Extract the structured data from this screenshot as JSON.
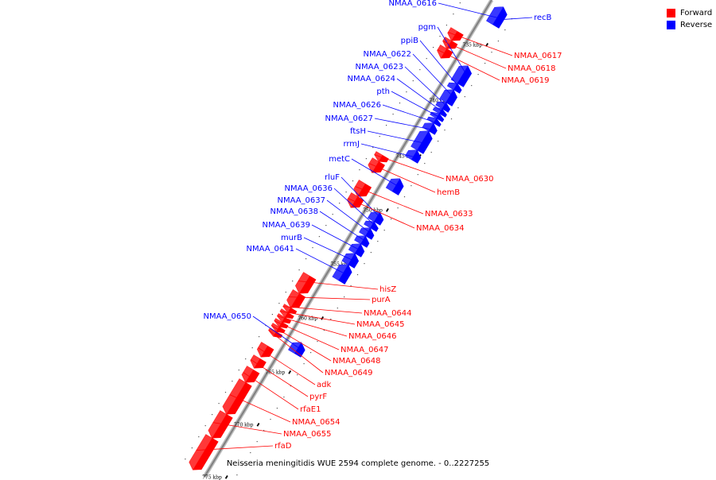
{
  "caption": "Neisseria meningitidis WUE 2594 complete genome. - 0..2227255",
  "legend": [
    {
      "label": "Forward",
      "color": "#ff0000"
    },
    {
      "label": "Reverse",
      "color": "#0000ff"
    }
  ],
  "colors": {
    "forward": "#ff0000",
    "reverse": "#0000ff",
    "backbone": "#808080"
  },
  "ticks": [
    {
      "label": "735 kbp",
      "kbp": 735
    },
    {
      "label": "740 kbp",
      "kbp": 740
    },
    {
      "label": "745 kbp",
      "kbp": 745
    },
    {
      "label": "750 kbp",
      "kbp": 750
    },
    {
      "label": "755 kbp",
      "kbp": 755
    },
    {
      "label": "760 kbp",
      "kbp": 760
    },
    {
      "label": "765 kbp",
      "kbp": 765
    },
    {
      "label": "770 kbp",
      "kbp": 770
    },
    {
      "label": "775 kbp",
      "kbp": 775
    }
  ],
  "genes": [
    {
      "name": "NMAA_0616",
      "strand": "reverse"
    },
    {
      "name": "recB",
      "strand": "reverse"
    },
    {
      "name": "pgm",
      "strand": "reverse"
    },
    {
      "name": "ppiB",
      "strand": "reverse"
    },
    {
      "name": "NMAA_0617",
      "strand": "forward"
    },
    {
      "name": "NMAA_0618",
      "strand": "forward"
    },
    {
      "name": "NMAA_0619",
      "strand": "forward"
    },
    {
      "name": "NMAA_0622",
      "strand": "reverse"
    },
    {
      "name": "NMAA_0623",
      "strand": "reverse"
    },
    {
      "name": "NMAA_0624",
      "strand": "reverse"
    },
    {
      "name": "pth",
      "strand": "reverse"
    },
    {
      "name": "NMAA_0626",
      "strand": "reverse"
    },
    {
      "name": "NMAA_0627",
      "strand": "reverse"
    },
    {
      "name": "ftsH",
      "strand": "reverse"
    },
    {
      "name": "rrmJ",
      "strand": "reverse"
    },
    {
      "name": "metC",
      "strand": "reverse"
    },
    {
      "name": "NMAA_0630",
      "strand": "forward"
    },
    {
      "name": "hemB",
      "strand": "forward"
    },
    {
      "name": "rluF",
      "strand": "reverse"
    },
    {
      "name": "NMAA_0636",
      "strand": "reverse"
    },
    {
      "name": "NMAA_0637",
      "strand": "reverse"
    },
    {
      "name": "NMAA_0638",
      "strand": "reverse"
    },
    {
      "name": "NMAA_0633",
      "strand": "forward"
    },
    {
      "name": "NMAA_0634",
      "strand": "forward"
    },
    {
      "name": "NMAA_0639",
      "strand": "reverse"
    },
    {
      "name": "murB",
      "strand": "reverse"
    },
    {
      "name": "NMAA_0641",
      "strand": "reverse"
    },
    {
      "name": "hisZ",
      "strand": "forward"
    },
    {
      "name": "purA",
      "strand": "forward"
    },
    {
      "name": "NMAA_0644",
      "strand": "forward"
    },
    {
      "name": "NMAA_0645",
      "strand": "forward"
    },
    {
      "name": "NMAA_0646",
      "strand": "forward"
    },
    {
      "name": "NMAA_0650",
      "strand": "reverse"
    },
    {
      "name": "NMAA_0647",
      "strand": "forward"
    },
    {
      "name": "NMAA_0648",
      "strand": "forward"
    },
    {
      "name": "NMAA_0649",
      "strand": "forward"
    },
    {
      "name": "adk",
      "strand": "forward"
    },
    {
      "name": "pyrF",
      "strand": "forward"
    },
    {
      "name": "rfaE1",
      "strand": "forward"
    },
    {
      "name": "NMAA_0654",
      "strand": "forward"
    },
    {
      "name": "NMAA_0655",
      "strand": "forward"
    },
    {
      "name": "rfaD",
      "strand": "forward"
    }
  ]
}
